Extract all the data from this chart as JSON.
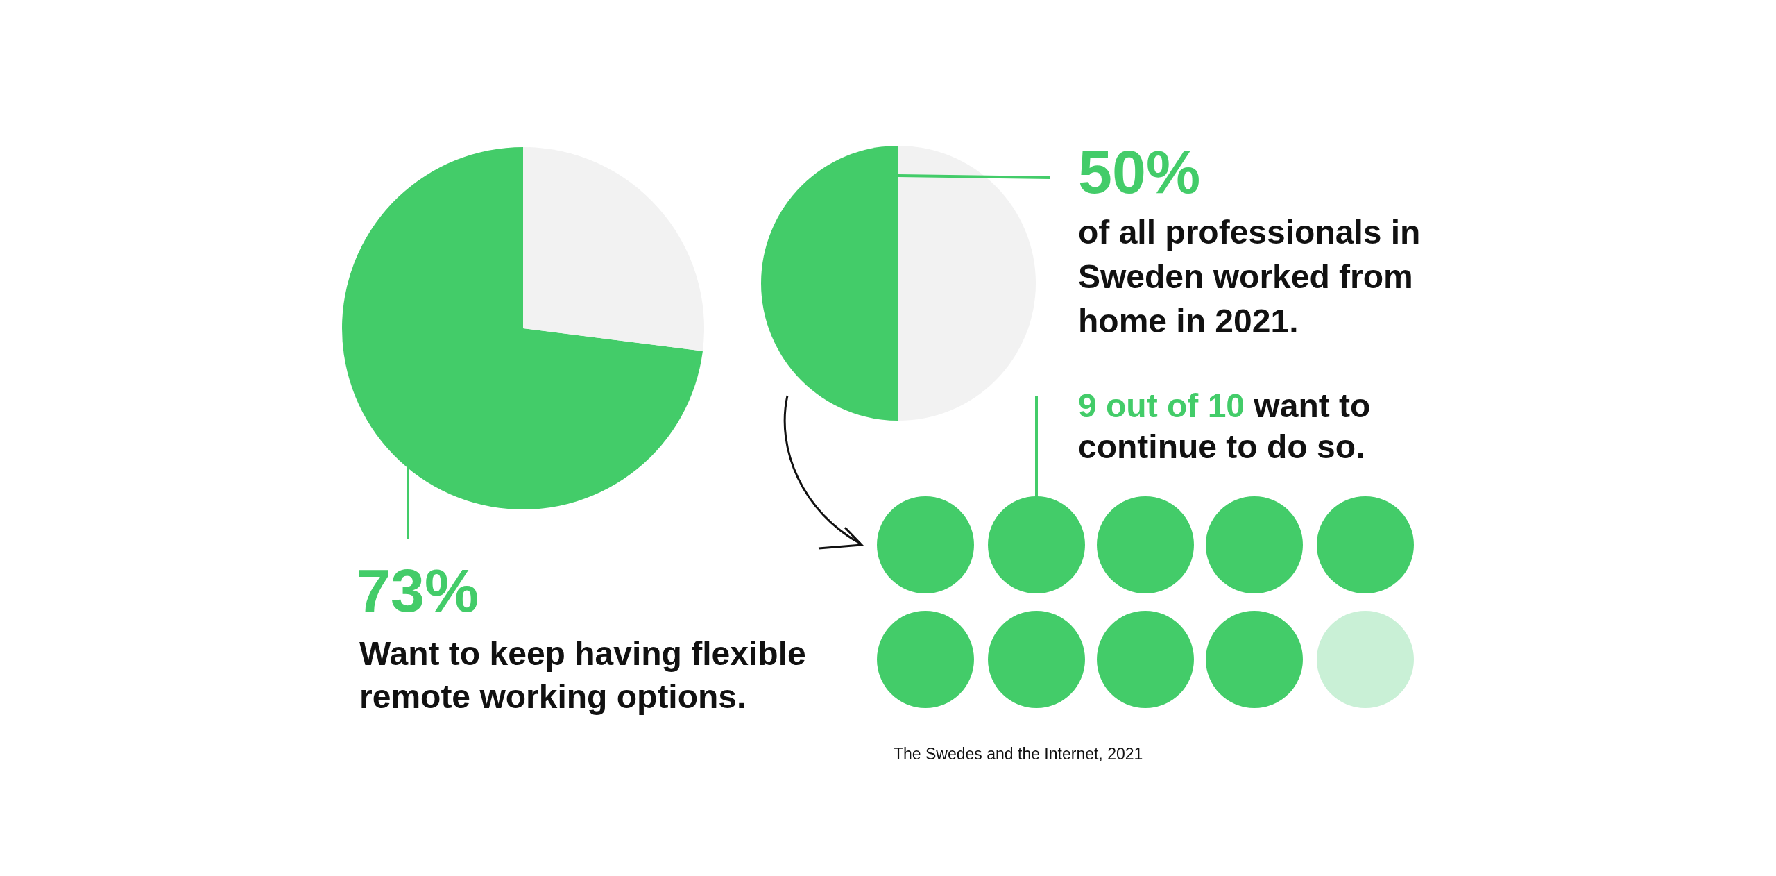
{
  "chart_data": [
    {
      "type": "pie",
      "title": "Want to keep having flexible\nremote working options.",
      "categories": [
        null,
        null
      ],
      "values": [
        73,
        27
      ],
      "colors": [
        "#43cc69",
        "#f2f2f2"
      ],
      "value_labels": [
        "73%",
        null
      ]
    },
    {
      "type": "pie",
      "title": "of all professionals in\nSweden worked from\nhome in 2021.",
      "categories": [
        null,
        null
      ],
      "values": [
        50,
        50
      ],
      "colors": [
        "#43cc69",
        "#f2f2f2"
      ],
      "value_labels": [
        "50%",
        null
      ],
      "annotations": [
        "The Swedes and the Internet, 2021"
      ]
    },
    {
      "type": "other",
      "subtitle": "9 out of 10",
      "title": "want to\ncontinue to do so."
    }
  ]
}
